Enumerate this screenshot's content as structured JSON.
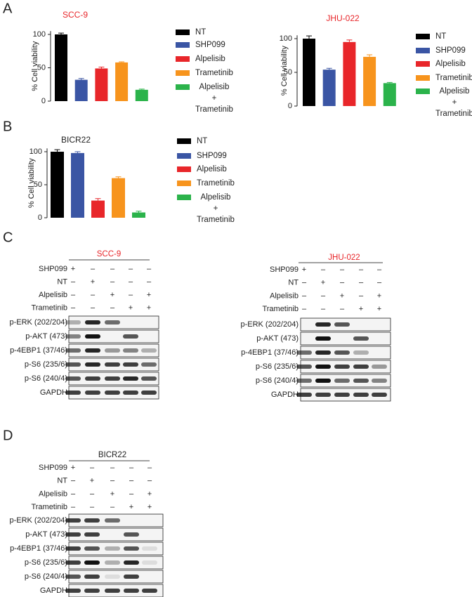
{
  "panels": [
    "A",
    "B",
    "C",
    "D"
  ],
  "chart_data": [
    {
      "type": "bar",
      "title": "SCC-9",
      "title_color": "#e8262a",
      "y_label": "% Cell viability",
      "categories": [
        "NT",
        "SHP099",
        "Alpelisib",
        "Trametinib",
        "Alpelisib\n+\nTrametinib"
      ],
      "values": [
        100,
        32,
        49,
        58,
        17
      ],
      "errors": [
        2,
        2,
        2,
        1,
        1
      ],
      "colors": [
        "#000000",
        "#3a55a4",
        "#e8262a",
        "#f7941d",
        "#2bb34b"
      ],
      "ylim": [
        0,
        105
      ],
      "yticks": [
        0,
        50,
        100
      ]
    },
    {
      "type": "bar",
      "title": "JHU-022",
      "title_color": "#e8262a",
      "y_label": "% Cell viability",
      "categories": [
        "NT",
        "SHP099",
        "Alpelisib",
        "Trametinib",
        "Alpelisib\n+\nTrametinib"
      ],
      "values": [
        100,
        54,
        95,
        73,
        34
      ],
      "errors": [
        4,
        2,
        3,
        3,
        1
      ],
      "colors": [
        "#000000",
        "#3a55a4",
        "#e8262a",
        "#f7941d",
        "#2bb34b"
      ],
      "ylim": [
        0,
        105
      ],
      "yticks": [
        0,
        50,
        100
      ]
    },
    {
      "type": "bar",
      "title": "BICR22",
      "title_color": "#222222",
      "y_label": "% Cell viability",
      "categories": [
        "NT",
        "SHP099",
        "Alpelisib",
        "Trametinib",
        "Alpelisib\n+\nTrametinib"
      ],
      "values": [
        100,
        98,
        26,
        60,
        8
      ],
      "errors": [
        3,
        2,
        3,
        2,
        2
      ],
      "colors": [
        "#000000",
        "#3a55a4",
        "#e8262a",
        "#f7941d",
        "#2bb34b"
      ],
      "ylim": [
        0,
        105
      ],
      "yticks": [
        0,
        50,
        100
      ]
    }
  ],
  "blots": [
    {
      "title": "SCC-9",
      "title_color": "#e8262a",
      "treatments": [
        {
          "name": "SHP099",
          "signs": [
            "+",
            "–",
            "–",
            "–",
            "–"
          ]
        },
        {
          "name": "NT",
          "signs": [
            "–",
            "+",
            "–",
            "–",
            "–"
          ]
        },
        {
          "name": "Alpelisib",
          "signs": [
            "–",
            "–",
            "+",
            "–",
            "+"
          ]
        },
        {
          "name": "Trametinib",
          "signs": [
            "–",
            "–",
            "–",
            "+",
            "+"
          ]
        }
      ],
      "antibodies": [
        "p-ERK (202/204)",
        "p-AKT (473)",
        "p-4EBP1 (37/46)",
        "p-S6 (235/6)",
        "p-S6 (240/4)",
        "GAPDH"
      ]
    },
    {
      "title": "JHU-022",
      "title_color": "#e8262a",
      "treatments": [
        {
          "name": "SHP099",
          "signs": [
            "+",
            "–",
            "–",
            "–",
            "–"
          ]
        },
        {
          "name": "NT",
          "signs": [
            "–",
            "+",
            "–",
            "–",
            "–"
          ]
        },
        {
          "name": "Alpelisib",
          "signs": [
            "–",
            "–",
            "+",
            "–",
            "+"
          ]
        },
        {
          "name": "Trametinib",
          "signs": [
            "–",
            "–",
            "–",
            "+",
            "+"
          ]
        }
      ],
      "antibodies": [
        "p-ERK (202/204)",
        "p-AKT (473)",
        "p-4EBP1 (37/46)",
        "p-S6 (235/6)",
        "p-S6 (240/4)",
        "GAPDH"
      ]
    },
    {
      "title": "BICR22",
      "title_color": "#222222",
      "treatments": [
        {
          "name": "SHP099",
          "signs": [
            "+",
            "–",
            "–",
            "–",
            "–"
          ]
        },
        {
          "name": "NT",
          "signs": [
            "–",
            "+",
            "–",
            "–",
            "–"
          ]
        },
        {
          "name": "Alpelisib",
          "signs": [
            "–",
            "–",
            "+",
            "–",
            "+"
          ]
        },
        {
          "name": "Trametinib",
          "signs": [
            "–",
            "–",
            "–",
            "+",
            "+"
          ]
        }
      ],
      "antibodies": [
        "p-ERK (202/204)",
        "p-AKT (473)",
        "p-4EBP1 (37/46)",
        "p-S6 (235/6)",
        "p-S6 (240/4)",
        "GAPDH"
      ]
    }
  ]
}
